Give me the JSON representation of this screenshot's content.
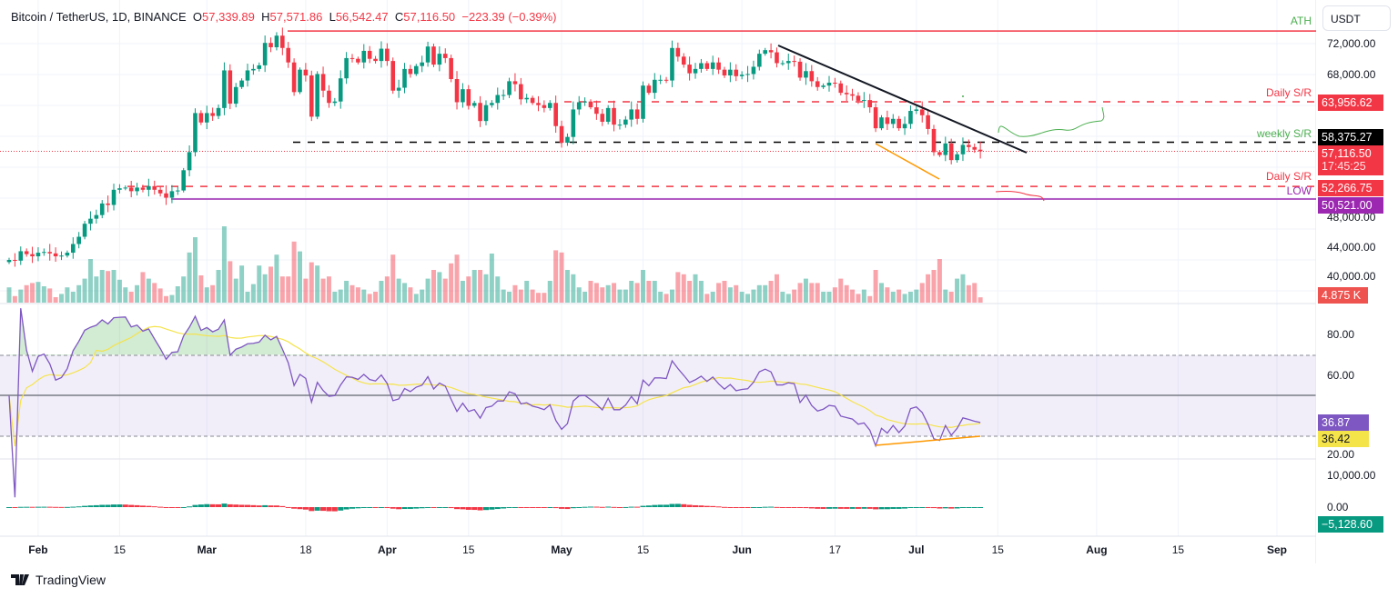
{
  "header": {
    "symbol": "Bitcoin / TetherUS, 1D, BINANCE",
    "o_label": "O",
    "o": "57,339.89",
    "h_label": "H",
    "h": "57,571.86",
    "l_label": "L",
    "l": "56,542.47",
    "c_label": "C",
    "c": "57,116.50",
    "change": "−223.39 (−0.39%)"
  },
  "currency_button": "USDT",
  "footer": {
    "brand": "TradingView"
  },
  "colors": {
    "up": "#089981",
    "down": "#f23645",
    "rsi": "#7e57c2",
    "rsi_ma": "#f5e34a",
    "low": "#9c27b0",
    "ath": "#f23645",
    "green_label": "#4caf50"
  },
  "annotations": {
    "ath": {
      "label": "ATH",
      "price": 73750
    },
    "daily_sr_upper": {
      "label": "Daily S/R",
      "price": 63956.62,
      "value": "63,956.62"
    },
    "weekly_sr": {
      "label": "weekly S/R",
      "price": 58375.27,
      "value": "58,375.27"
    },
    "daily_sr_lower": {
      "label": "Daily S/R",
      "price": 52266.75,
      "value": "52,266.75"
    },
    "low": {
      "label": "LOW",
      "price": 50521.0,
      "value": "50,521.00"
    },
    "last_price": {
      "value": "57,116.50",
      "countdown": "17:45:25",
      "price": 57116.5
    },
    "last_volume": "4.875 K",
    "rsi_value": "36.87",
    "rsi_ma_value": "36.42",
    "macd_value": "−5,128.60"
  },
  "chart_data": {
    "type": "candlestick",
    "title": "Bitcoin / TetherUS, 1D, BINANCE",
    "price_axis": {
      "ticks": [
        "72,000.00",
        "68,000.00",
        "48,000.00",
        "44,000.00",
        "40,000.00"
      ]
    },
    "rsi_axis": {
      "ticks": [
        "80.00",
        "60.00",
        "20.00"
      ],
      "bands": [
        30,
        50,
        70
      ]
    },
    "macd_axis": {
      "ticks": [
        "10,000.00",
        "0.00"
      ]
    },
    "time_ticks": [
      {
        "label": "Feb",
        "date": "2024-02-01",
        "bold": true
      },
      {
        "label": "15",
        "date": "2024-02-15"
      },
      {
        "label": "Mar",
        "date": "2024-03-01",
        "bold": true
      },
      {
        "label": "18",
        "date": "2024-03-18"
      },
      {
        "label": "Apr",
        "date": "2024-04-01",
        "bold": true
      },
      {
        "label": "15",
        "date": "2024-04-15"
      },
      {
        "label": "May",
        "date": "2024-05-01",
        "bold": true
      },
      {
        "label": "15",
        "date": "2024-05-15"
      },
      {
        "label": "Jun",
        "date": "2024-06-01",
        "bold": true
      },
      {
        "label": "17",
        "date": "2024-06-17"
      },
      {
        "label": "Jul",
        "date": "2024-07-01",
        "bold": true
      },
      {
        "label": "15",
        "date": "2024-07-15"
      },
      {
        "label": "Aug",
        "date": "2024-08-01",
        "bold": true
      },
      {
        "label": "15",
        "date": "2024-08-15"
      },
      {
        "label": "Sep",
        "date": "2024-09-01",
        "bold": true
      }
    ],
    "columns": [
      "date",
      "close",
      "volume_k"
    ],
    "daily": [
      [
        "2024-01-27",
        42100,
        14
      ],
      [
        "2024-01-28",
        42000,
        6
      ],
      [
        "2024-01-29",
        43300,
        12
      ],
      [
        "2024-01-30",
        42900,
        16
      ],
      [
        "2024-01-31",
        42600,
        18
      ],
      [
        "2024-02-01",
        43100,
        19
      ],
      [
        "2024-02-02",
        43200,
        15
      ],
      [
        "2024-02-03",
        43000,
        13
      ],
      [
        "2024-02-04",
        42600,
        5
      ],
      [
        "2024-02-05",
        42700,
        8
      ],
      [
        "2024-02-06",
        43100,
        14
      ],
      [
        "2024-02-07",
        44300,
        10
      ],
      [
        "2024-02-08",
        45300,
        16
      ],
      [
        "2024-02-09",
        47100,
        22
      ],
      [
        "2024-02-10",
        47800,
        40
      ],
      [
        "2024-02-11",
        48300,
        24
      ],
      [
        "2024-02-12",
        49900,
        30
      ],
      [
        "2024-02-13",
        49700,
        29
      ],
      [
        "2024-02-14",
        51800,
        30
      ],
      [
        "2024-02-15",
        52000,
        21
      ],
      [
        "2024-02-16",
        52100,
        14
      ],
      [
        "2024-02-17",
        51600,
        10
      ],
      [
        "2024-02-18",
        52100,
        16
      ],
      [
        "2024-02-19",
        51800,
        28
      ],
      [
        "2024-02-20",
        52300,
        22
      ],
      [
        "2024-02-21",
        51800,
        18
      ],
      [
        "2024-02-22",
        51300,
        13
      ],
      [
        "2024-02-23",
        50700,
        6
      ],
      [
        "2024-02-24",
        51600,
        7
      ],
      [
        "2024-02-25",
        51700,
        15
      ],
      [
        "2024-02-26",
        54500,
        24
      ],
      [
        "2024-02-27",
        57000,
        46
      ],
      [
        "2024-02-28",
        62400,
        60
      ],
      [
        "2024-02-29",
        61100,
        25
      ],
      [
        "2024-03-01",
        62400,
        14
      ],
      [
        "2024-03-02",
        62000,
        16
      ],
      [
        "2024-03-03",
        63100,
        30
      ],
      [
        "2024-03-04",
        68300,
        70
      ],
      [
        "2024-03-05",
        63700,
        38
      ],
      [
        "2024-03-06",
        66000,
        22
      ],
      [
        "2024-03-07",
        66900,
        34
      ],
      [
        "2024-03-08",
        68300,
        10
      ],
      [
        "2024-03-09",
        68500,
        17
      ],
      [
        "2024-03-10",
        69000,
        34
      ],
      [
        "2024-03-11",
        72100,
        26
      ],
      [
        "2024-03-12",
        71500,
        33
      ],
      [
        "2024-03-13",
        73100,
        44
      ],
      [
        "2024-03-14",
        71400,
        24
      ],
      [
        "2024-03-15",
        69400,
        24
      ],
      [
        "2024-03-16",
        65300,
        56
      ],
      [
        "2024-03-17",
        68400,
        47
      ],
      [
        "2024-03-18",
        67600,
        22
      ],
      [
        "2024-03-19",
        61900,
        37
      ],
      [
        "2024-03-20",
        67800,
        34
      ],
      [
        "2024-03-21",
        65500,
        22
      ],
      [
        "2024-03-22",
        63800,
        24
      ],
      [
        "2024-03-23",
        64000,
        10
      ],
      [
        "2024-03-24",
        67200,
        12
      ],
      [
        "2024-03-25",
        70000,
        20
      ],
      [
        "2024-03-26",
        69900,
        16
      ],
      [
        "2024-03-27",
        69400,
        14
      ],
      [
        "2024-03-28",
        71000,
        12
      ],
      [
        "2024-03-29",
        69900,
        8
      ],
      [
        "2024-03-30",
        69600,
        10
      ],
      [
        "2024-03-31",
        71300,
        20
      ],
      [
        "2024-04-01",
        69600,
        24
      ],
      [
        "2024-04-02",
        65500,
        44
      ],
      [
        "2024-04-03",
        65900,
        22
      ],
      [
        "2024-04-04",
        68500,
        18
      ],
      [
        "2024-04-05",
        67800,
        14
      ],
      [
        "2024-04-06",
        68900,
        8
      ],
      [
        "2024-04-07",
        69400,
        12
      ],
      [
        "2024-04-08",
        71600,
        22
      ],
      [
        "2024-04-09",
        69100,
        30
      ],
      [
        "2024-04-10",
        70600,
        28
      ],
      [
        "2024-04-11",
        70000,
        22
      ],
      [
        "2024-04-12",
        67100,
        36
      ],
      [
        "2024-04-13",
        63900,
        44
      ],
      [
        "2024-04-14",
        65700,
        20
      ],
      [
        "2024-04-15",
        63400,
        24
      ],
      [
        "2024-04-16",
        63800,
        30
      ],
      [
        "2024-04-17",
        61300,
        30
      ],
      [
        "2024-04-18",
        63500,
        26
      ],
      [
        "2024-04-19",
        63800,
        45
      ],
      [
        "2024-04-20",
        64900,
        24
      ],
      [
        "2024-04-21",
        64900,
        12
      ],
      [
        "2024-04-22",
        66800,
        10
      ],
      [
        "2024-04-23",
        66400,
        16
      ],
      [
        "2024-04-24",
        64300,
        12
      ],
      [
        "2024-04-25",
        64500,
        20
      ],
      [
        "2024-04-26",
        63800,
        12
      ],
      [
        "2024-04-27",
        63500,
        9
      ],
      [
        "2024-04-28",
        63100,
        9
      ],
      [
        "2024-04-29",
        63800,
        20
      ],
      [
        "2024-04-30",
        60600,
        48
      ],
      [
        "2024-05-01",
        58300,
        46
      ],
      [
        "2024-05-02",
        59100,
        30
      ],
      [
        "2024-05-03",
        62900,
        26
      ],
      [
        "2024-05-04",
        63900,
        14
      ],
      [
        "2024-05-05",
        64000,
        10
      ],
      [
        "2024-05-06",
        63200,
        20
      ],
      [
        "2024-05-07",
        62300,
        18
      ],
      [
        "2024-05-08",
        61200,
        14
      ],
      [
        "2024-05-09",
        63100,
        16
      ],
      [
        "2024-05-10",
        60800,
        18
      ],
      [
        "2024-05-11",
        60800,
        12
      ],
      [
        "2024-05-12",
        61500,
        12
      ],
      [
        "2024-05-13",
        62900,
        20
      ],
      [
        "2024-05-14",
        61600,
        18
      ],
      [
        "2024-05-15",
        66200,
        30
      ],
      [
        "2024-05-16",
        65200,
        20
      ],
      [
        "2024-05-17",
        67000,
        20
      ],
      [
        "2024-05-18",
        67000,
        10
      ],
      [
        "2024-05-19",
        66900,
        8
      ],
      [
        "2024-05-20",
        71400,
        12
      ],
      [
        "2024-05-21",
        70200,
        28
      ],
      [
        "2024-05-22",
        69100,
        26
      ],
      [
        "2024-05-23",
        67900,
        20
      ],
      [
        "2024-05-24",
        68500,
        26
      ],
      [
        "2024-05-25",
        69300,
        20
      ],
      [
        "2024-05-26",
        68500,
        8
      ],
      [
        "2024-05-27",
        69400,
        10
      ],
      [
        "2024-05-28",
        68400,
        18
      ],
      [
        "2024-05-29",
        67600,
        20
      ],
      [
        "2024-05-30",
        68400,
        14
      ],
      [
        "2024-05-31",
        67500,
        16
      ],
      [
        "2024-06-01",
        67700,
        10
      ],
      [
        "2024-06-02",
        67800,
        8
      ],
      [
        "2024-06-03",
        68800,
        12
      ],
      [
        "2024-06-04",
        70600,
        16
      ],
      [
        "2024-06-05",
        71100,
        16
      ],
      [
        "2024-06-06",
        70800,
        20
      ],
      [
        "2024-06-07",
        69300,
        26
      ],
      [
        "2024-06-08",
        69300,
        10
      ],
      [
        "2024-06-09",
        69600,
        8
      ],
      [
        "2024-06-10",
        69500,
        12
      ],
      [
        "2024-06-11",
        67300,
        18
      ],
      [
        "2024-06-12",
        68200,
        22
      ],
      [
        "2024-06-13",
        66800,
        18
      ],
      [
        "2024-06-14",
        66000,
        18
      ],
      [
        "2024-06-15",
        66200,
        10
      ],
      [
        "2024-06-16",
        66600,
        10
      ],
      [
        "2024-06-17",
        66500,
        14
      ],
      [
        "2024-06-18",
        65200,
        22
      ],
      [
        "2024-06-19",
        65000,
        16
      ],
      [
        "2024-06-20",
        64800,
        12
      ],
      [
        "2024-06-21",
        64100,
        8
      ],
      [
        "2024-06-22",
        64200,
        12
      ],
      [
        "2024-06-23",
        63200,
        6
      ],
      [
        "2024-06-24",
        60300,
        30
      ],
      [
        "2024-06-25",
        61800,
        18
      ],
      [
        "2024-06-26",
        60900,
        14
      ],
      [
        "2024-06-27",
        61600,
        10
      ],
      [
        "2024-06-28",
        60300,
        12
      ],
      [
        "2024-06-29",
        60900,
        8
      ],
      [
        "2024-06-30",
        62700,
        10
      ],
      [
        "2024-07-01",
        62900,
        12
      ],
      [
        "2024-07-02",
        62100,
        18
      ],
      [
        "2024-07-03",
        60200,
        26
      ],
      [
        "2024-07-04",
        57000,
        30
      ],
      [
        "2024-07-05",
        56600,
        40
      ],
      [
        "2024-07-06",
        58200,
        12
      ],
      [
        "2024-07-07",
        55900,
        10
      ],
      [
        "2024-07-08",
        56700,
        22
      ],
      [
        "2024-07-09",
        58000,
        26
      ],
      [
        "2024-07-10",
        57700,
        16
      ],
      [
        "2024-07-11",
        57339.89,
        18
      ],
      [
        "2024-07-12",
        57116.5,
        4.875
      ]
    ]
  }
}
